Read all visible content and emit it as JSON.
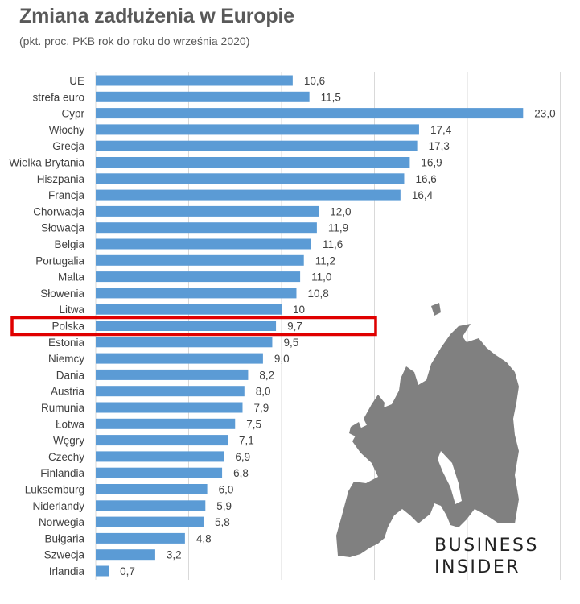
{
  "header": {
    "title": "Zmiana zadłużenia w Europie",
    "subtitle": "(pkt. proc. PKB rok do roku do września 2020)"
  },
  "logo": {
    "line1": "BUSINESS",
    "line2": "INSIDER"
  },
  "colors": {
    "bar": "#5b9bd5",
    "highlight": "#e00000",
    "map": "#808080",
    "grid": "#d9d9d9",
    "text": "#404040"
  },
  "chart_data": {
    "type": "bar",
    "orientation": "horizontal",
    "categories": [
      "UE",
      "strefa euro",
      "Cypr",
      "Włochy",
      "Grecja",
      "Wielka Brytania",
      "Hiszpania",
      "Francja",
      "Chorwacja",
      "Słowacja",
      "Belgia",
      "Portugalia",
      "Malta",
      "Słowenia",
      "Litwa",
      "Polska",
      "Estonia",
      "Niemcy",
      "Dania",
      "Austria",
      "Rumunia",
      "Łotwa",
      "Węgry",
      "Czechy",
      "Finlandia",
      "Luksemburg",
      "Niderlandy",
      "Norwegia",
      "Bułgaria",
      "Szwecja",
      "Irlandia"
    ],
    "values": [
      10.6,
      11.5,
      23.0,
      17.4,
      17.3,
      16.9,
      16.6,
      16.4,
      12.0,
      11.9,
      11.6,
      11.2,
      11.0,
      10.8,
      10,
      9.7,
      9.5,
      9.0,
      8.2,
      8.0,
      7.9,
      7.5,
      7.1,
      6.9,
      6.8,
      6.0,
      5.9,
      5.8,
      4.8,
      3.2,
      0.7
    ],
    "value_labels": [
      "10,6",
      "11,5",
      "23,0",
      "17,4",
      "17,3",
      "16,9",
      "16,6",
      "16,4",
      "12,0",
      "11,9",
      "11,6",
      "11,2",
      "11,0",
      "10,8",
      "10",
      "9,7",
      "9,5",
      "9,0",
      "8,2",
      "8,0",
      "7,9",
      "7,5",
      "7,1",
      "6,9",
      "6,8",
      "6,0",
      "5,9",
      "5,8",
      "4,8",
      "3,2",
      "0,7"
    ],
    "highlight": "Polska",
    "xlim": [
      0,
      25
    ],
    "grid": "vertical",
    "legend": "none"
  }
}
